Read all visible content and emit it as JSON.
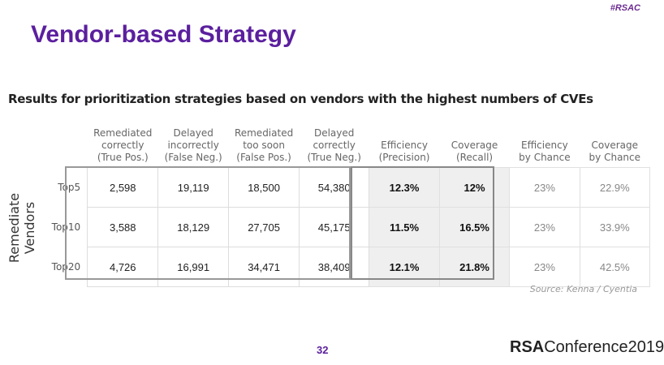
{
  "tag": "#RSAC",
  "title": "Vendor-based Strategy",
  "subtitle": "Results for prioritization strategies based on vendors with the highest numbers of CVEs",
  "row_axis_label": "Remediate Vendors",
  "columns": [
    [
      "Remediated",
      "correctly",
      "(True Pos.)"
    ],
    [
      "Delayed",
      "incorrectly",
      "(False Neg.)"
    ],
    [
      "Remediated",
      "too soon",
      "(False Pos.)"
    ],
    [
      "Delayed",
      "correctly",
      "(True Neg.)"
    ],
    [
      "Efficiency",
      "(Precision)"
    ],
    [
      "Coverage",
      "(Recall)"
    ],
    [
      "Efficiency",
      "by Chance"
    ],
    [
      "Coverage",
      "by Chance"
    ]
  ],
  "rows": [
    {
      "label": "Top5",
      "cells": [
        "2,598",
        "19,119",
        "18,500",
        "54,380",
        "12.3%",
        "12%",
        "23%",
        "22.9%"
      ]
    },
    {
      "label": "Top10",
      "cells": [
        "3,588",
        "18,129",
        "27,705",
        "45,175",
        "11.5%",
        "16.5%",
        "23%",
        "33.9%"
      ]
    },
    {
      "label": "Top20",
      "cells": [
        "4,726",
        "16,991",
        "34,471",
        "38,409",
        "12.1%",
        "21.8%",
        "23%",
        "42.5%"
      ]
    }
  ],
  "source": "Source: Kenna / Cyentia",
  "page_number": "32",
  "logo": {
    "bold": "RSA",
    "rest": "Conference2019"
  }
}
